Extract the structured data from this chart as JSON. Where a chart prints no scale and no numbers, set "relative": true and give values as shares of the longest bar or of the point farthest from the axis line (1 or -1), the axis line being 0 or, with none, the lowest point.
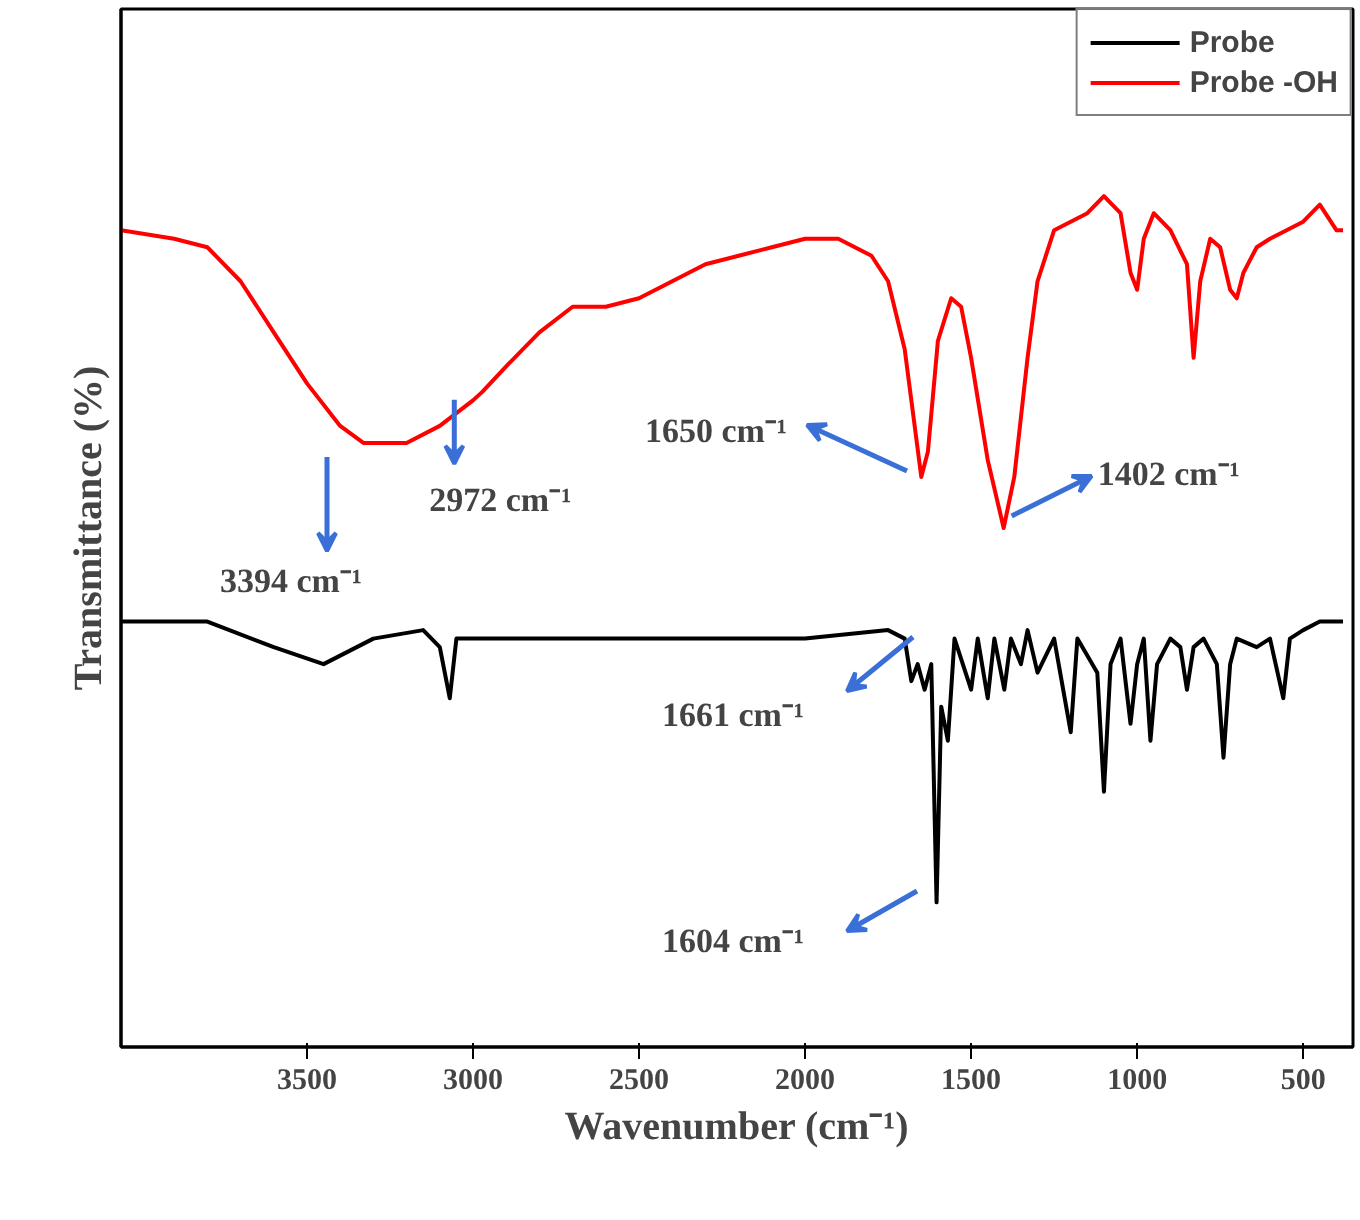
{
  "chart_data": {
    "type": "line",
    "relative": true,
    "xlabel": "Wavenumber (cm⁻¹)",
    "ylabel": "Transmittance (%)",
    "xlim": [
      4060,
      350
    ],
    "xticks": [
      3500,
      3000,
      2500,
      2000,
      1500,
      1000,
      500
    ],
    "grid": false,
    "legend": "top right",
    "marker": "none",
    "line_style": "solid",
    "tick_labels": "x",
    "series": [
      {
        "name": "Probe",
        "color": "#000000",
        "x": [
          4060,
          3800,
          3600,
          3450,
          3300,
          3150,
          3100,
          3070,
          3050,
          3000,
          2800,
          2500,
          2000,
          1750,
          1700,
          1680,
          1661,
          1640,
          1620,
          1604,
          1590,
          1570,
          1550,
          1500,
          1480,
          1450,
          1430,
          1400,
          1380,
          1350,
          1330,
          1300,
          1250,
          1200,
          1180,
          1120,
          1100,
          1080,
          1050,
          1020,
          1000,
          980,
          960,
          940,
          900,
          870,
          850,
          830,
          800,
          760,
          740,
          720,
          700,
          640,
          600,
          560,
          540,
          500,
          450,
          380
        ],
        "values": [
          0.5,
          0.5,
          0.47,
          0.45,
          0.48,
          0.49,
          0.47,
          0.41,
          0.48,
          0.48,
          0.48,
          0.48,
          0.48,
          0.49,
          0.48,
          0.43,
          0.45,
          0.42,
          0.45,
          0.17,
          0.4,
          0.36,
          0.48,
          0.42,
          0.48,
          0.41,
          0.48,
          0.42,
          0.48,
          0.45,
          0.49,
          0.44,
          0.48,
          0.37,
          0.48,
          0.44,
          0.3,
          0.45,
          0.48,
          0.38,
          0.45,
          0.48,
          0.36,
          0.45,
          0.48,
          0.47,
          0.42,
          0.47,
          0.48,
          0.45,
          0.34,
          0.45,
          0.48,
          0.47,
          0.48,
          0.41,
          0.48,
          0.49,
          0.5,
          0.5
        ]
      },
      {
        "name": "Probe -OH",
        "color": "#ff0000",
        "x": [
          4060,
          3900,
          3800,
          3700,
          3600,
          3500,
          3400,
          3330,
          3200,
          3100,
          3000,
          2972,
          2900,
          2800,
          2700,
          2600,
          2500,
          2400,
          2300,
          2200,
          2100,
          2000,
          1900,
          1800,
          1750,
          1700,
          1660,
          1650,
          1630,
          1600,
          1560,
          1530,
          1500,
          1450,
          1402,
          1370,
          1330,
          1300,
          1250,
          1200,
          1150,
          1100,
          1050,
          1020,
          1000,
          980,
          950,
          900,
          850,
          830,
          810,
          780,
          750,
          720,
          700,
          680,
          640,
          600,
          550,
          500,
          450,
          400,
          380
        ],
        "values": [
          0.96,
          0.95,
          0.94,
          0.9,
          0.84,
          0.78,
          0.73,
          0.71,
          0.71,
          0.73,
          0.76,
          0.77,
          0.8,
          0.84,
          0.87,
          0.87,
          0.88,
          0.9,
          0.92,
          0.93,
          0.94,
          0.95,
          0.95,
          0.93,
          0.9,
          0.82,
          0.7,
          0.67,
          0.7,
          0.83,
          0.88,
          0.87,
          0.81,
          0.69,
          0.61,
          0.67,
          0.81,
          0.9,
          0.96,
          0.97,
          0.98,
          1.0,
          0.98,
          0.91,
          0.89,
          0.95,
          0.98,
          0.96,
          0.92,
          0.81,
          0.9,
          0.95,
          0.94,
          0.89,
          0.88,
          0.91,
          0.94,
          0.95,
          0.96,
          0.97,
          0.99,
          0.96,
          0.96
        ]
      }
    ],
    "annotations": [
      "3394 cm⁻¹",
      {
        "text": "2972 cm⁻¹",
        "x": 2972,
        "y": 0.77
      },
      "1650 cm⁻¹",
      {
        "text": "1402 cm⁻¹",
        "x": 1402,
        "y": 0.61
      },
      "1661 cm⁻¹",
      "1604 cm⁻¹"
    ]
  }
}
